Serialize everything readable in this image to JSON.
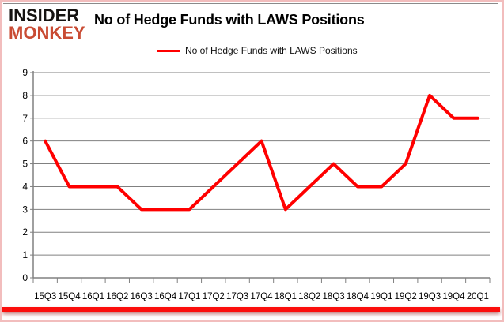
{
  "header": {
    "logo_line1": "INSIDER",
    "logo_line2": "MONKEY",
    "title": "No of Hedge Funds with LAWS Positions"
  },
  "legend": {
    "label": "No of Hedge Funds with LAWS Positions"
  },
  "colors": {
    "line": "#ff0000",
    "grid": "#808080",
    "axis": "#808080",
    "text": "#000000",
    "logo_red": "#c94b33",
    "border_pink": "#f2bdbd",
    "bottom_bar": "#fb0e0c"
  },
  "chart_data": {
    "type": "line",
    "title": "No of Hedge Funds with LAWS Positions",
    "categories": [
      "15Q3",
      "15Q4",
      "16Q1",
      "16Q2",
      "16Q3",
      "16Q4",
      "17Q1",
      "17Q2",
      "17Q3",
      "17Q4",
      "18Q1",
      "18Q2",
      "18Q3",
      "18Q4",
      "19Q1",
      "19Q2",
      "19Q3",
      "19Q4",
      "20Q1"
    ],
    "values": [
      6,
      4,
      4,
      4,
      3,
      3,
      3,
      4,
      5,
      6,
      3,
      4,
      5,
      4,
      4,
      5,
      8,
      7,
      7
    ],
    "series_name": "No of Hedge Funds with LAWS Positions",
    "xlabel": "",
    "ylabel": "",
    "ylim": [
      0,
      9
    ],
    "ytick_step": 1,
    "yticks": [
      0,
      1,
      2,
      3,
      4,
      5,
      6,
      7,
      8,
      9
    ],
    "grid": true,
    "legend_position": "top"
  }
}
